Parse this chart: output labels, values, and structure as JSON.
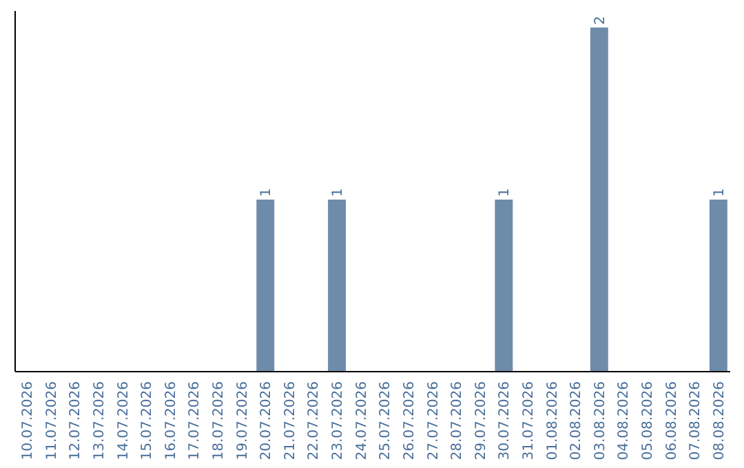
{
  "chart_data": {
    "type": "bar",
    "categories": [
      "10.07.2026",
      "11.07.2026",
      "12.07.2026",
      "13.07.2026",
      "14.07.2026",
      "15.07.2026",
      "16.07.2026",
      "17.07.2026",
      "18.07.2026",
      "19.07.2026",
      "20.07.2026",
      "21.07.2026",
      "22.07.2026",
      "23.07.2026",
      "24.07.2026",
      "25.07.2026",
      "26.07.2026",
      "27.07.2026",
      "28.07.2026",
      "29.07.2026",
      "30.07.2026",
      "31.07.2026",
      "01.08.2026",
      "02.08.2026",
      "03.08.2026",
      "04.08.2026",
      "05.08.2026",
      "06.08.2026",
      "07.08.2026",
      "08.08.2026"
    ],
    "values": [
      0,
      0,
      0,
      0,
      0,
      0,
      0,
      0,
      0,
      0,
      1,
      0,
      0,
      1,
      0,
      0,
      0,
      0,
      0,
      0,
      1,
      0,
      0,
      0,
      2,
      0,
      0,
      0,
      0,
      1
    ],
    "value_labels": [
      null,
      null,
      null,
      null,
      null,
      null,
      null,
      null,
      null,
      null,
      "1",
      null,
      null,
      "1",
      null,
      null,
      null,
      null,
      null,
      null,
      "1",
      null,
      null,
      null,
      "2",
      null,
      null,
      null,
      null,
      "1"
    ],
    "color": "#6e8caa",
    "tick_labels": "x"
  }
}
